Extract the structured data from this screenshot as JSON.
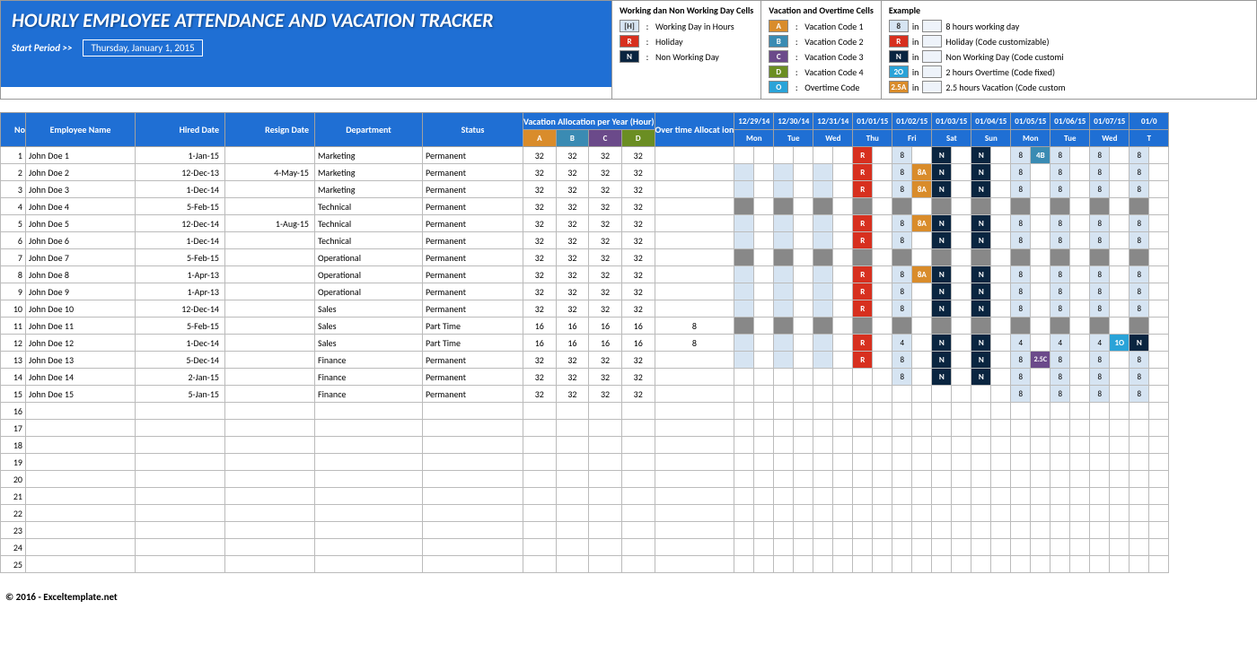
{
  "title": "HOURLY EMPLOYEE ATTENDANCE AND VACATION TRACKER",
  "start_period_label": "Start Period >>",
  "start_period_value": "Thursday, January 1, 2015",
  "legend": {
    "col1": {
      "title": "Working dan Non Working Day Cells",
      "rows": [
        {
          "c": "[H]",
          "bg": "#d6e4f2",
          "fg": "#333",
          "t": "Working Day in Hours"
        },
        {
          "c": "R",
          "bg": "#d7301f",
          "fg": "#fff",
          "t": "Holiday"
        },
        {
          "c": "N",
          "bg": "#0a2540",
          "fg": "#fff",
          "t": "Non Working Day"
        }
      ]
    },
    "col2": {
      "title": "Vacation and Overtime Cells",
      "rows": [
        {
          "c": "A",
          "bg": "#d98c2b",
          "fg": "#fff",
          "t": "Vacation Code 1"
        },
        {
          "c": "B",
          "bg": "#3a8bb3",
          "fg": "#fff",
          "t": "Vacation Code 2"
        },
        {
          "c": "C",
          "bg": "#6b4a8a",
          "fg": "#fff",
          "t": "Vacation Code 3"
        },
        {
          "c": "D",
          "bg": "#6b8e23",
          "fg": "#fff",
          "t": "Vacation Code 4"
        },
        {
          "c": "O",
          "bg": "#2aa3d8",
          "fg": "#fff",
          "t": "Overtime Code"
        }
      ]
    },
    "col3": {
      "title": "Example",
      "rows": [
        {
          "c": "8",
          "bg": "#d6e4f2",
          "fg": "#333",
          "t": "8 hours working day"
        },
        {
          "c": "R",
          "bg": "#d7301f",
          "fg": "#fff",
          "t": "Holiday (Code customizable)"
        },
        {
          "c": "N",
          "bg": "#0a2540",
          "fg": "#fff",
          "t": "Non Working Day (Code customi"
        },
        {
          "c": "2O",
          "bg": "#2aa3d8",
          "fg": "#fff",
          "t": "2 hours Overtime (Code fixed)"
        },
        {
          "c": "2.5A",
          "bg": "#d98c2b",
          "fg": "#fff",
          "t": "2.5 hours Vacation (Code custom"
        }
      ]
    }
  },
  "headers": {
    "no": "No",
    "name": "Employee Name",
    "hired": "Hired Date",
    "resign": "Resign Date",
    "dept": "Department",
    "status": "Status",
    "vac": "Vacation Allocation per Year (Hour)",
    "ot": "Over time Allocat ion",
    "a": "A",
    "b": "B",
    "c": "C",
    "d": "D"
  },
  "dates": [
    "12/29/14",
    "12/30/14",
    "12/31/14",
    "01/01/15",
    "01/02/15",
    "01/03/15",
    "01/04/15",
    "01/05/15",
    "01/06/15",
    "01/07/15",
    "01/0"
  ],
  "dows": [
    "Mon",
    "Tue",
    "Wed",
    "Thu",
    "Fri",
    "Sat",
    "Sun",
    "Mon",
    "Tue",
    "Wed",
    "T"
  ],
  "rows": [
    {
      "no": 1,
      "name": "John Doe 1",
      "hired": "1-Jan-15",
      "resign": "",
      "dept": "Marketing",
      "status": "Permanent",
      "a": 32,
      "b": 32,
      "c": 32,
      "d": 32,
      "ot": "",
      "cells": [
        [
          "",
          ""
        ],
        [
          "",
          ""
        ],
        [
          "",
          ""
        ],
        [
          "R",
          ""
        ],
        [
          "8",
          ""
        ],
        [
          "N",
          ""
        ],
        [
          "N",
          ""
        ],
        [
          "8",
          "4B"
        ],
        [
          "8",
          ""
        ],
        [
          "8",
          ""
        ],
        [
          "8",
          ""
        ]
      ]
    },
    {
      "no": 2,
      "name": "John Doe 2",
      "hired": "12-Dec-13",
      "resign": "4-May-15",
      "dept": "Marketing",
      "status": "Permanent",
      "a": 32,
      "b": 32,
      "c": 32,
      "d": 32,
      "ot": "",
      "cells": [
        [
          "lt",
          ""
        ],
        [
          "lt",
          ""
        ],
        [
          "lt",
          ""
        ],
        [
          "R",
          ""
        ],
        [
          "8",
          "8A"
        ],
        [
          "N",
          ""
        ],
        [
          "N",
          ""
        ],
        [
          "8",
          ""
        ],
        [
          "8",
          ""
        ],
        [
          "8",
          ""
        ],
        [
          "8",
          ""
        ]
      ]
    },
    {
      "no": 3,
      "name": "John Doe 3",
      "hired": "1-Dec-14",
      "resign": "",
      "dept": "Marketing",
      "status": "Permanent",
      "a": 32,
      "b": 32,
      "c": 32,
      "d": 32,
      "ot": "",
      "cells": [
        [
          "lt",
          ""
        ],
        [
          "lt",
          ""
        ],
        [
          "lt",
          ""
        ],
        [
          "R",
          ""
        ],
        [
          "8",
          "8A"
        ],
        [
          "N",
          ""
        ],
        [
          "N",
          ""
        ],
        [
          "8",
          ""
        ],
        [
          "8",
          ""
        ],
        [
          "8",
          ""
        ],
        [
          "8",
          ""
        ]
      ]
    },
    {
      "no": 4,
      "name": "John Doe 4",
      "hired": "5-Feb-15",
      "resign": "",
      "dept": "Technical",
      "status": "Permanent",
      "a": 32,
      "b": 32,
      "c": 32,
      "d": 32,
      "ot": "",
      "cells": [
        [
          "g",
          ""
        ],
        [
          "g",
          ""
        ],
        [
          "g",
          ""
        ],
        [
          "g",
          ""
        ],
        [
          "g",
          ""
        ],
        [
          "g",
          ""
        ],
        [
          "g",
          ""
        ],
        [
          "g",
          ""
        ],
        [
          "g",
          ""
        ],
        [
          "g",
          ""
        ],
        [
          "g",
          ""
        ]
      ]
    },
    {
      "no": 5,
      "name": "John Doe 5",
      "hired": "12-Dec-14",
      "resign": "1-Aug-15",
      "dept": "Technical",
      "status": "Permanent",
      "a": 32,
      "b": 32,
      "c": 32,
      "d": 32,
      "ot": "",
      "cells": [
        [
          "lt",
          ""
        ],
        [
          "lt",
          ""
        ],
        [
          "lt",
          ""
        ],
        [
          "R",
          ""
        ],
        [
          "8",
          "8A"
        ],
        [
          "N",
          ""
        ],
        [
          "N",
          ""
        ],
        [
          "8",
          ""
        ],
        [
          "8",
          ""
        ],
        [
          "8",
          ""
        ],
        [
          "8",
          ""
        ]
      ]
    },
    {
      "no": 6,
      "name": "John Doe 6",
      "hired": "1-Dec-14",
      "resign": "",
      "dept": "Technical",
      "status": "Permanent",
      "a": 32,
      "b": 32,
      "c": 32,
      "d": 32,
      "ot": "",
      "cells": [
        [
          "lt",
          ""
        ],
        [
          "lt",
          ""
        ],
        [
          "lt",
          ""
        ],
        [
          "R",
          ""
        ],
        [
          "8",
          ""
        ],
        [
          "N",
          ""
        ],
        [
          "N",
          ""
        ],
        [
          "8",
          ""
        ],
        [
          "8",
          ""
        ],
        [
          "8",
          ""
        ],
        [
          "8",
          ""
        ]
      ]
    },
    {
      "no": 7,
      "name": "John Doe 7",
      "hired": "5-Feb-15",
      "resign": "",
      "dept": "Operational",
      "status": "Permanent",
      "a": 32,
      "b": 32,
      "c": 32,
      "d": 32,
      "ot": "",
      "cells": [
        [
          "g",
          ""
        ],
        [
          "g",
          ""
        ],
        [
          "g",
          ""
        ],
        [
          "g",
          ""
        ],
        [
          "g",
          ""
        ],
        [
          "g",
          ""
        ],
        [
          "g",
          ""
        ],
        [
          "g",
          ""
        ],
        [
          "g",
          ""
        ],
        [
          "g",
          ""
        ],
        [
          "g",
          ""
        ]
      ]
    },
    {
      "no": 8,
      "name": "John Doe 8",
      "hired": "1-Apr-13",
      "resign": "",
      "dept": "Operational",
      "status": "Permanent",
      "a": 32,
      "b": 32,
      "c": 32,
      "d": 32,
      "ot": "",
      "cells": [
        [
          "lt",
          ""
        ],
        [
          "lt",
          ""
        ],
        [
          "lt",
          ""
        ],
        [
          "R",
          ""
        ],
        [
          "8",
          "8A"
        ],
        [
          "N",
          ""
        ],
        [
          "N",
          ""
        ],
        [
          "8",
          ""
        ],
        [
          "8",
          ""
        ],
        [
          "8",
          ""
        ],
        [
          "8",
          ""
        ]
      ]
    },
    {
      "no": 9,
      "name": "John Doe 9",
      "hired": "1-Apr-13",
      "resign": "",
      "dept": "Operational",
      "status": "Permanent",
      "a": 32,
      "b": 32,
      "c": 32,
      "d": 32,
      "ot": "",
      "cells": [
        [
          "lt",
          ""
        ],
        [
          "lt",
          ""
        ],
        [
          "lt",
          ""
        ],
        [
          "R",
          ""
        ],
        [
          "8",
          ""
        ],
        [
          "N",
          ""
        ],
        [
          "N",
          ""
        ],
        [
          "8",
          ""
        ],
        [
          "8",
          ""
        ],
        [
          "8",
          ""
        ],
        [
          "8",
          ""
        ]
      ]
    },
    {
      "no": 10,
      "name": "John Doe 10",
      "hired": "12-Dec-14",
      "resign": "",
      "dept": "Sales",
      "status": "Permanent",
      "a": 32,
      "b": 32,
      "c": 32,
      "d": 32,
      "ot": "",
      "cells": [
        [
          "lt",
          ""
        ],
        [
          "lt",
          ""
        ],
        [
          "lt",
          ""
        ],
        [
          "R",
          ""
        ],
        [
          "8",
          ""
        ],
        [
          "N",
          ""
        ],
        [
          "N",
          ""
        ],
        [
          "8",
          ""
        ],
        [
          "8",
          ""
        ],
        [
          "8",
          ""
        ],
        [
          "8",
          ""
        ]
      ]
    },
    {
      "no": 11,
      "name": "John Doe 11",
      "hired": "5-Feb-15",
      "resign": "",
      "dept": "Sales",
      "status": "Part Time",
      "a": 16,
      "b": 16,
      "c": 16,
      "d": 16,
      "ot": 8,
      "cells": [
        [
          "g",
          ""
        ],
        [
          "g",
          ""
        ],
        [
          "g",
          ""
        ],
        [
          "g",
          ""
        ],
        [
          "g",
          ""
        ],
        [
          "g",
          ""
        ],
        [
          "g",
          ""
        ],
        [
          "g",
          ""
        ],
        [
          "g",
          ""
        ],
        [
          "g",
          ""
        ],
        [
          "g",
          ""
        ]
      ]
    },
    {
      "no": 12,
      "name": "John Doe 12",
      "hired": "1-Dec-14",
      "resign": "",
      "dept": "Sales",
      "status": "Part Time",
      "a": 16,
      "b": 16,
      "c": 16,
      "d": 16,
      "ot": 8,
      "cells": [
        [
          "lt",
          ""
        ],
        [
          "lt",
          ""
        ],
        [
          "lt",
          ""
        ],
        [
          "R",
          ""
        ],
        [
          "4",
          ""
        ],
        [
          "N",
          ""
        ],
        [
          "N",
          ""
        ],
        [
          "4",
          ""
        ],
        [
          "4",
          ""
        ],
        [
          "4",
          "1O"
        ],
        [
          "N",
          ""
        ]
      ]
    },
    {
      "no": 13,
      "name": "John Doe 13",
      "hired": "5-Dec-14",
      "resign": "",
      "dept": "Finance",
      "status": "Permanent",
      "a": 32,
      "b": 32,
      "c": 32,
      "d": 32,
      "ot": "",
      "cells": [
        [
          "lt",
          ""
        ],
        [
          "lt",
          ""
        ],
        [
          "lt",
          ""
        ],
        [
          "R",
          ""
        ],
        [
          "8",
          ""
        ],
        [
          "N",
          ""
        ],
        [
          "N",
          ""
        ],
        [
          "8",
          "2.5C"
        ],
        [
          "8",
          ""
        ],
        [
          "8",
          ""
        ],
        [
          "8",
          ""
        ]
      ]
    },
    {
      "no": 14,
      "name": "John Doe 14",
      "hired": "2-Jan-15",
      "resign": "",
      "dept": "Finance",
      "status": "Permanent",
      "a": 32,
      "b": 32,
      "c": 32,
      "d": 32,
      "ot": "",
      "cells": [
        [
          "",
          ""
        ],
        [
          "",
          ""
        ],
        [
          "",
          ""
        ],
        [
          "",
          ""
        ],
        [
          "8",
          ""
        ],
        [
          "N",
          ""
        ],
        [
          "N",
          ""
        ],
        [
          "8",
          ""
        ],
        [
          "8",
          ""
        ],
        [
          "8",
          ""
        ],
        [
          "8",
          ""
        ]
      ]
    },
    {
      "no": 15,
      "name": "John Doe 15",
      "hired": "5-Jan-15",
      "resign": "",
      "dept": "Finance",
      "status": "Permanent",
      "a": 32,
      "b": 32,
      "c": 32,
      "d": 32,
      "ot": "",
      "cells": [
        [
          "",
          ""
        ],
        [
          "",
          ""
        ],
        [
          "",
          ""
        ],
        [
          "",
          ""
        ],
        [
          "",
          ""
        ],
        [
          "",
          ""
        ],
        [
          "",
          ""
        ],
        [
          "8",
          ""
        ],
        [
          "8",
          ""
        ],
        [
          "8",
          ""
        ],
        [
          "8",
          ""
        ]
      ]
    }
  ],
  "empty_rows": [
    16,
    17,
    18,
    19,
    20,
    21,
    22,
    23,
    24,
    25
  ],
  "footer": "© 2016 - Exceltemplate.net"
}
